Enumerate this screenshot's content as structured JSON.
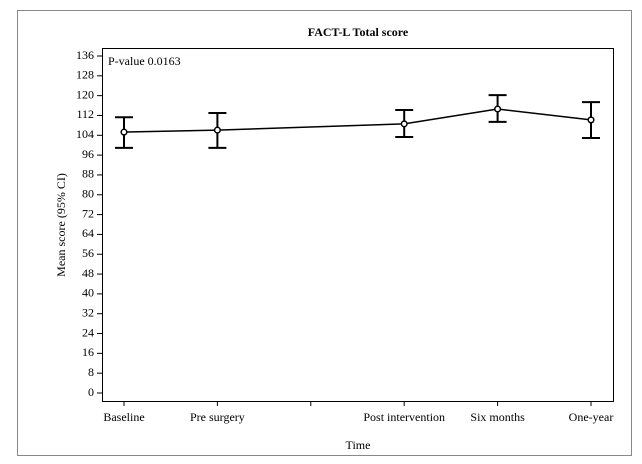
{
  "chart_data": {
    "type": "line",
    "title": "FACT-L Total score",
    "x_label": "Time",
    "y_label": "Mean score (95% CI)",
    "annotation": "P-value 0.0163",
    "categories": [
      "Baseline",
      "Pre surgery",
      null,
      "Post intervention",
      "Six months",
      "One-year"
    ],
    "series": [
      {
        "color": "#000000",
        "values": [
          105.3,
          106.1,
          null,
          108.6,
          114.6,
          110.2
        ],
        "lower": [
          98.9,
          98.9,
          null,
          103.3,
          109.4,
          102.9
        ],
        "upper": [
          111.3,
          113.0,
          null,
          114.2,
          120.2,
          117.4
        ]
      }
    ],
    "ylim": [
      0,
      136
    ],
    "yticks": [
      0,
      8,
      16,
      24,
      32,
      40,
      48,
      56,
      64,
      72,
      80,
      88,
      96,
      104,
      112,
      120,
      128,
      136
    ]
  }
}
